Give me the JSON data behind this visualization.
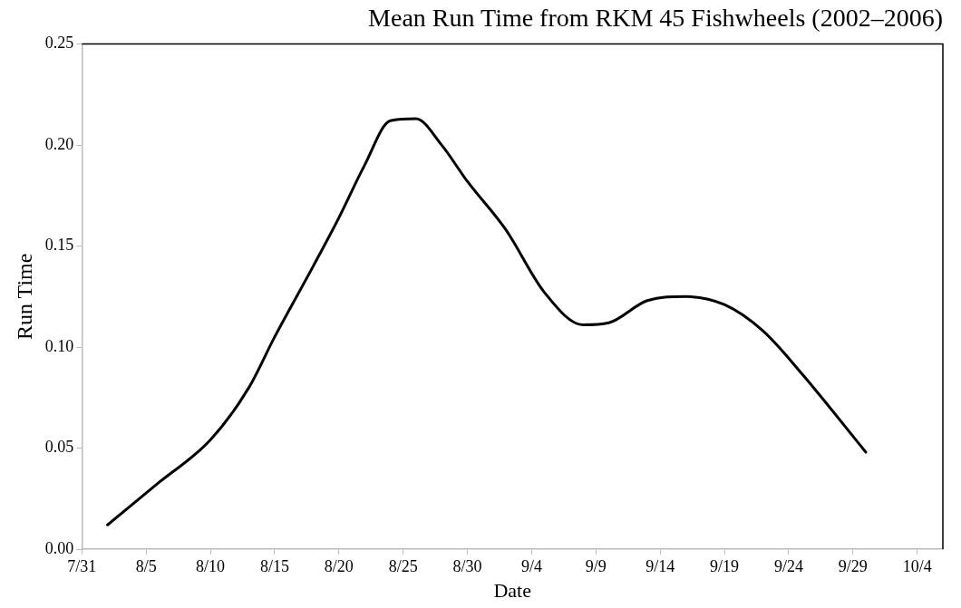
{
  "chart_data": {
    "type": "line",
    "title": "Mean Run Time from RKM 45 Fishwheels (2002–2006)",
    "xlabel": "Date",
    "ylabel": "Run Time",
    "x": [
      "--08-02",
      "--08-06",
      "--08-10",
      "--08-13",
      "--08-15",
      "--08-18",
      "--08-20",
      "--08-22",
      "--08-24",
      "--08-26",
      "--08-28",
      "--08-30",
      "--09-02",
      "--09-05",
      "--09-08",
      "--09-10",
      "--09-13",
      "--09-16",
      "--09-19",
      "--09-22",
      "--09-25",
      "--09-30"
    ],
    "series": [
      {
        "color": "#000000",
        "values": [
          0.012,
          0.033,
          0.054,
          0.08,
          0.105,
          0.14,
          0.164,
          0.19,
          0.212,
          0.213,
          0.2,
          0.182,
          0.158,
          0.127,
          0.111,
          0.112,
          0.123,
          0.125,
          0.121,
          0.108,
          0.087,
          0.048
        ]
      }
    ],
    "xlim": [
      "--07-31",
      "--10-06"
    ],
    "xticks": [
      {
        "value": "--07-31",
        "label": "7/31"
      },
      {
        "value": "--08-05",
        "label": "8/5"
      },
      {
        "value": "--08-10",
        "label": "8/10"
      },
      {
        "value": "--08-15",
        "label": "8/15"
      },
      {
        "value": "--08-20",
        "label": "8/20"
      },
      {
        "value": "--08-25",
        "label": "8/25"
      },
      {
        "value": "--08-30",
        "label": "8/30"
      },
      {
        "value": "--09-04",
        "label": "9/4"
      },
      {
        "value": "--09-09",
        "label": "9/9"
      },
      {
        "value": "--09-14",
        "label": "9/14"
      },
      {
        "value": "--09-19",
        "label": "9/19"
      },
      {
        "value": "--09-24",
        "label": "9/24"
      },
      {
        "value": "--09-29",
        "label": "9/29"
      },
      {
        "value": "--10-04",
        "label": "10/4"
      }
    ],
    "ylim": [
      0,
      0.25
    ],
    "yticks": [
      {
        "value": 0,
        "label": "0.00"
      },
      {
        "value": 0.05,
        "label": "0.05"
      },
      {
        "value": 0.1,
        "label": "0.10"
      },
      {
        "value": 0.15,
        "label": "0.15"
      },
      {
        "value": 0.2,
        "label": "0.20"
      },
      {
        "value": 0.25,
        "label": "0.25"
      }
    ],
    "grid": false,
    "legend": false,
    "marker": "none",
    "line_style": "solid"
  }
}
